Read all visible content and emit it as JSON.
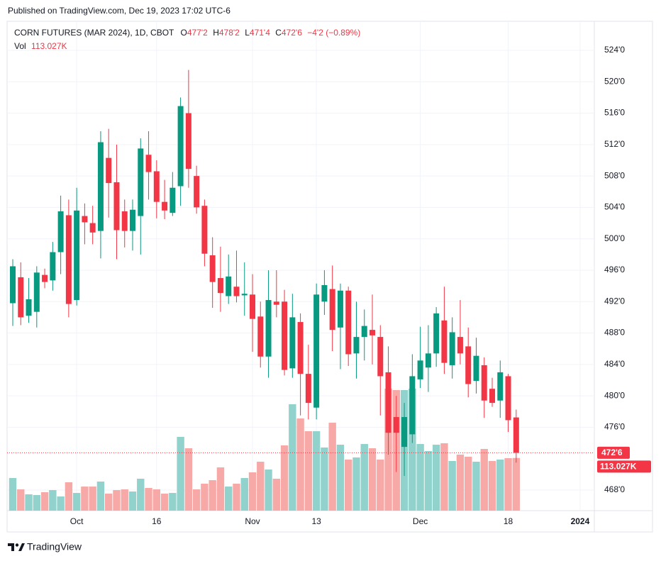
{
  "header": {
    "published": "Published on TradingView.com, Dec 19, 2023 17:02 UTC-6"
  },
  "footer": {
    "brand": "TradingView"
  },
  "chart_data": {
    "type": "candlestick",
    "legend": {
      "title": "CORN FUTURES (MAR 2024), 1D, CBOT",
      "fields": [
        {
          "key": "O",
          "value": "477'2"
        },
        {
          "key": "H",
          "value": "478'2"
        },
        {
          "key": "L",
          "value": "471'4"
        },
        {
          "key": "C",
          "value": "472'6"
        }
      ],
      "change": "−4'2 (−0.89%)",
      "volume_name": "Vol",
      "volume_value": "113.027K"
    },
    "open": [
      491.8,
      495.1,
      490.2,
      490.7,
      495.4,
      494.7,
      498.3,
      503,
      492.2,
      502.9,
      502,
      501,
      510.3,
      507.2,
      503.5,
      501,
      502.9,
      510.7,
      508.6,
      504.7,
      503.3,
      506.7,
      516,
      508,
      504.2,
      497.9,
      495,
      492.7,
      493.9,
      492.8,
      492.9,
      490.1,
      485,
      492,
      492,
      483.5,
      489.4,
      482.8,
      478.5,
      492,
      493.6,
      488.7,
      493.4,
      485.4,
      487.5,
      488.4,
      487.5,
      483,
      477.3,
      473.5,
      475.1,
      482.1,
      483.6,
      485.4,
      489.6,
      483.9,
      487.5,
      486.3,
      481.9,
      483.9,
      480.9,
      479.4,
      482.5,
      477.25
    ],
    "high": [
      497.4,
      497,
      495,
      496.5,
      496.2,
      499.6,
      505.5,
      505,
      506.5,
      504.5,
      504.2,
      513.7,
      514,
      512,
      505,
      505,
      512.8,
      513.7,
      510,
      507.5,
      508.5,
      518,
      521.5,
      509.3,
      505,
      500.2,
      499,
      498,
      498.5,
      497,
      495.5,
      492,
      496,
      496,
      493.5,
      493,
      490.5,
      486.5,
      494.3,
      496,
      496.6,
      494.3,
      493.9,
      492,
      491,
      492.9,
      489,
      486.3,
      480,
      479.1,
      485.3,
      488.8,
      489,
      491.3,
      493.9,
      490,
      492.2,
      488.7,
      487.4,
      484.9,
      482.3,
      484.5,
      482.8,
      478.25
    ],
    "low": [
      488.9,
      489,
      489.3,
      488.7,
      493.7,
      493.4,
      495.5,
      490,
      491.5,
      499.3,
      499.3,
      497.5,
      502.7,
      497.4,
      498.9,
      498.5,
      498,
      505,
      502.6,
      502.5,
      502.9,
      504.2,
      506.5,
      503.2,
      496.5,
      491.2,
      490.7,
      491.7,
      491.9,
      490.2,
      485.6,
      483.6,
      482.3,
      490,
      482.6,
      482.3,
      477.5,
      477,
      477,
      490.3,
      485.7,
      483.4,
      483.8,
      482.2,
      484.5,
      484,
      477.5,
      472.5,
      470.3,
      469.8,
      474,
      481,
      480.5,
      483.7,
      482.8,
      482.2,
      484,
      479.8,
      480.3,
      477.2,
      478.6,
      477.2,
      475.4,
      471.5
    ],
    "close": [
      496.5,
      490,
      492.3,
      495.7,
      494.5,
      498.3,
      503.5,
      491.7,
      503.6,
      502.1,
      500.8,
      512.3,
      507.1,
      501.1,
      501,
      503.7,
      511.5,
      508.5,
      504.7,
      503.6,
      506.5,
      516.9,
      508.9,
      504,
      498.1,
      494.5,
      493.1,
      495.2,
      492.7,
      493,
      489.8,
      485,
      492.2,
      491.6,
      483.3,
      490,
      482.8,
      479.1,
      492.9,
      494.1,
      488.4,
      493.4,
      485.3,
      487.5,
      488.9,
      487.7,
      482.5,
      475.3,
      475.3,
      477.3,
      482.5,
      484.5,
      485.4,
      490.5,
      484.2,
      488.1,
      485.4,
      481.5,
      485.1,
      479.4,
      479.1,
      483,
      476.9,
      472.75
    ],
    "volume": [
      70000,
      45700,
      35000,
      33500,
      39600,
      44100,
      30400,
      60900,
      38000,
      51700,
      51700,
      62400,
      36500,
      44100,
      45700,
      41100,
      68500,
      48700,
      45700,
      36500,
      38000,
      158300,
      133900,
      45700,
      57800,
      65400,
      92800,
      51700,
      57800,
      70000,
      82200,
      105000,
      88300,
      68500,
      140000,
      228300,
      197800,
      170500,
      170500,
      135500,
      188700,
      141500,
      109600,
      114100,
      143000,
      133900,
      109600,
      261700,
      258700,
      258700,
      261700,
      143000,
      127800,
      141500,
      144600,
      106500,
      120200,
      115700,
      105000,
      132400,
      106500,
      109600,
      112600,
      113027
    ],
    "up_color": "#089981",
    "down_color": "#f23645",
    "volume_up_color": "#92d2cc",
    "volume_down_color": "#f7a9a7",
    "xlim": [
      -0.71,
      72.78
    ],
    "xticks": [
      {
        "value": 8,
        "label": "Oct"
      },
      {
        "value": 18,
        "label": "16"
      },
      {
        "value": 30,
        "label": "Nov"
      },
      {
        "value": 38,
        "label": "13"
      },
      {
        "value": 51,
        "label": "Dec"
      },
      {
        "value": 62,
        "label": "18"
      },
      {
        "value": 71,
        "label": "2024"
      }
    ],
    "ylim": [
      465.38,
      527.7
    ],
    "yticks": [
      {
        "value": 468,
        "label": "468'0"
      },
      {
        "value": 476,
        "label": "476'0"
      },
      {
        "value": 480,
        "label": "480'0"
      },
      {
        "value": 484,
        "label": "484'0"
      },
      {
        "value": 488,
        "label": "488'0"
      },
      {
        "value": 492,
        "label": "492'0"
      },
      {
        "value": 496,
        "label": "496'0"
      },
      {
        "value": 500,
        "label": "500'0"
      },
      {
        "value": 504,
        "label": "504'0"
      },
      {
        "value": 508,
        "label": "508'0"
      },
      {
        "value": 512,
        "label": "512'0"
      },
      {
        "value": 516,
        "label": "516'0"
      },
      {
        "value": 520,
        "label": "520'0"
      },
      {
        "value": 524,
        "label": "524'0"
      }
    ],
    "volume_lim": [
      0,
      1050000
    ],
    "grid": true
  }
}
